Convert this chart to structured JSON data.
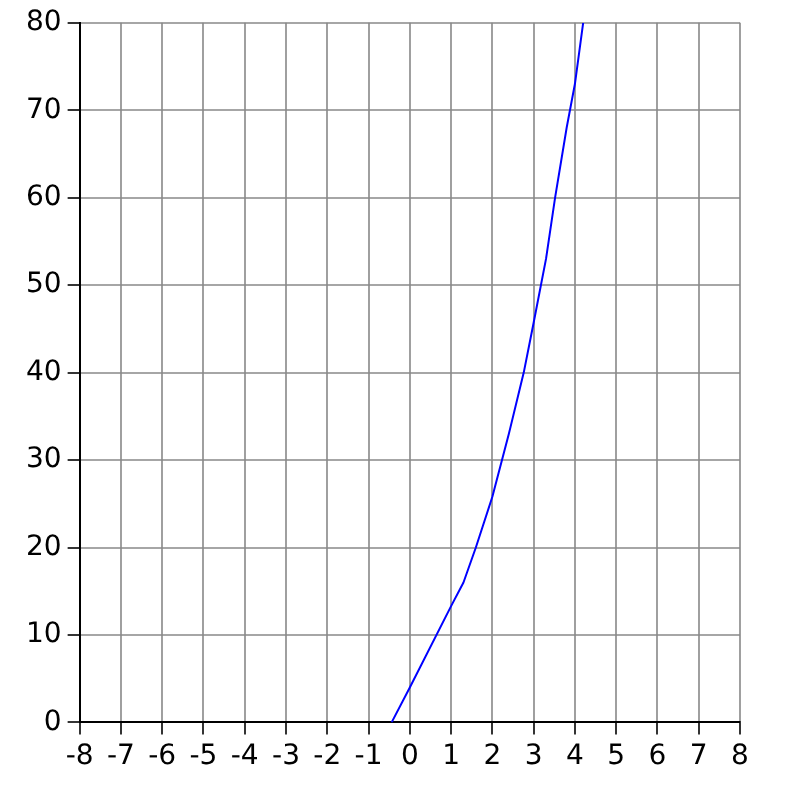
{
  "chart_data": {
    "type": "line",
    "x": [
      -0.44,
      0,
      1,
      1.3,
      1.6,
      2,
      2.4,
      2.76,
      3,
      3.3,
      3.52,
      3.8,
      4,
      4.2
    ],
    "series": [
      {
        "color": "#0000ff",
        "values": [
          0,
          4,
          13.3,
          16,
          20,
          25.8,
          33,
          40,
          45.7,
          53,
          60,
          68,
          73,
          80
        ]
      }
    ],
    "xlim": [
      -8,
      8
    ],
    "xticks": [
      -8,
      -7,
      -6,
      -5,
      -4,
      -3,
      -2,
      -1,
      0,
      1,
      2,
      3,
      4,
      5,
      6,
      7,
      8
    ],
    "ylim": [
      0,
      80
    ],
    "yticks": [
      0,
      10,
      20,
      30,
      40,
      50,
      60,
      70,
      80
    ],
    "grid": true,
    "legend": false,
    "marker": "none",
    "line_style": "solid"
  }
}
